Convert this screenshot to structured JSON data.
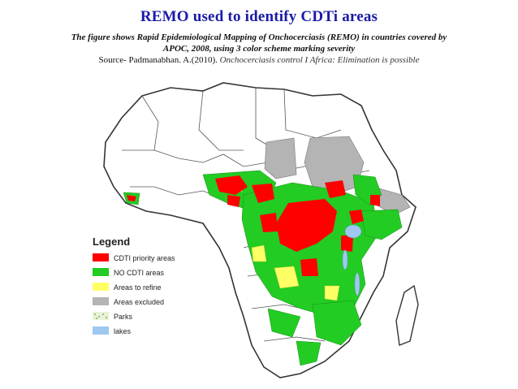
{
  "slide": {
    "title": "REMO used to identify CDTi areas",
    "caption_line1": "The figure shows Rapid Epidemiological Mapping of Onchocerciasis (REMO) in countries covered by",
    "caption_line2": "APOC, 2008, using 3 color scheme marking severity",
    "source_prefix": "Source- Padmanabhan. A.(2010). ",
    "source_title": "Onchocerciasis control I Africa: Elimination is possible"
  },
  "map": {
    "legend": {
      "title": "Legend",
      "items": [
        {
          "label": "CDTI priority areas",
          "color": "#ff0000",
          "icon": "red-swatch"
        },
        {
          "label": "NO CDTI areas",
          "color": "#22cc22",
          "icon": "green-swatch"
        },
        {
          "label": "Areas to refine",
          "color": "#ffff66",
          "icon": "yellow-swatch"
        },
        {
          "label": "Areas excluded",
          "color": "#b4b4b4",
          "icon": "grey-swatch"
        },
        {
          "label": "Parks",
          "color": "#c8e0a8",
          "icon": "dotted-swatch"
        },
        {
          "label": "lakes",
          "color": "#9fc8f0",
          "icon": "blue-swatch"
        }
      ]
    },
    "colors": {
      "outline": "#333333",
      "land": "#ffffff",
      "priority": "#ff0000",
      "no_cdti": "#22cc22",
      "refine": "#ffff66",
      "excluded": "#b4b4b4",
      "lakes": "#9fc8f0"
    }
  }
}
